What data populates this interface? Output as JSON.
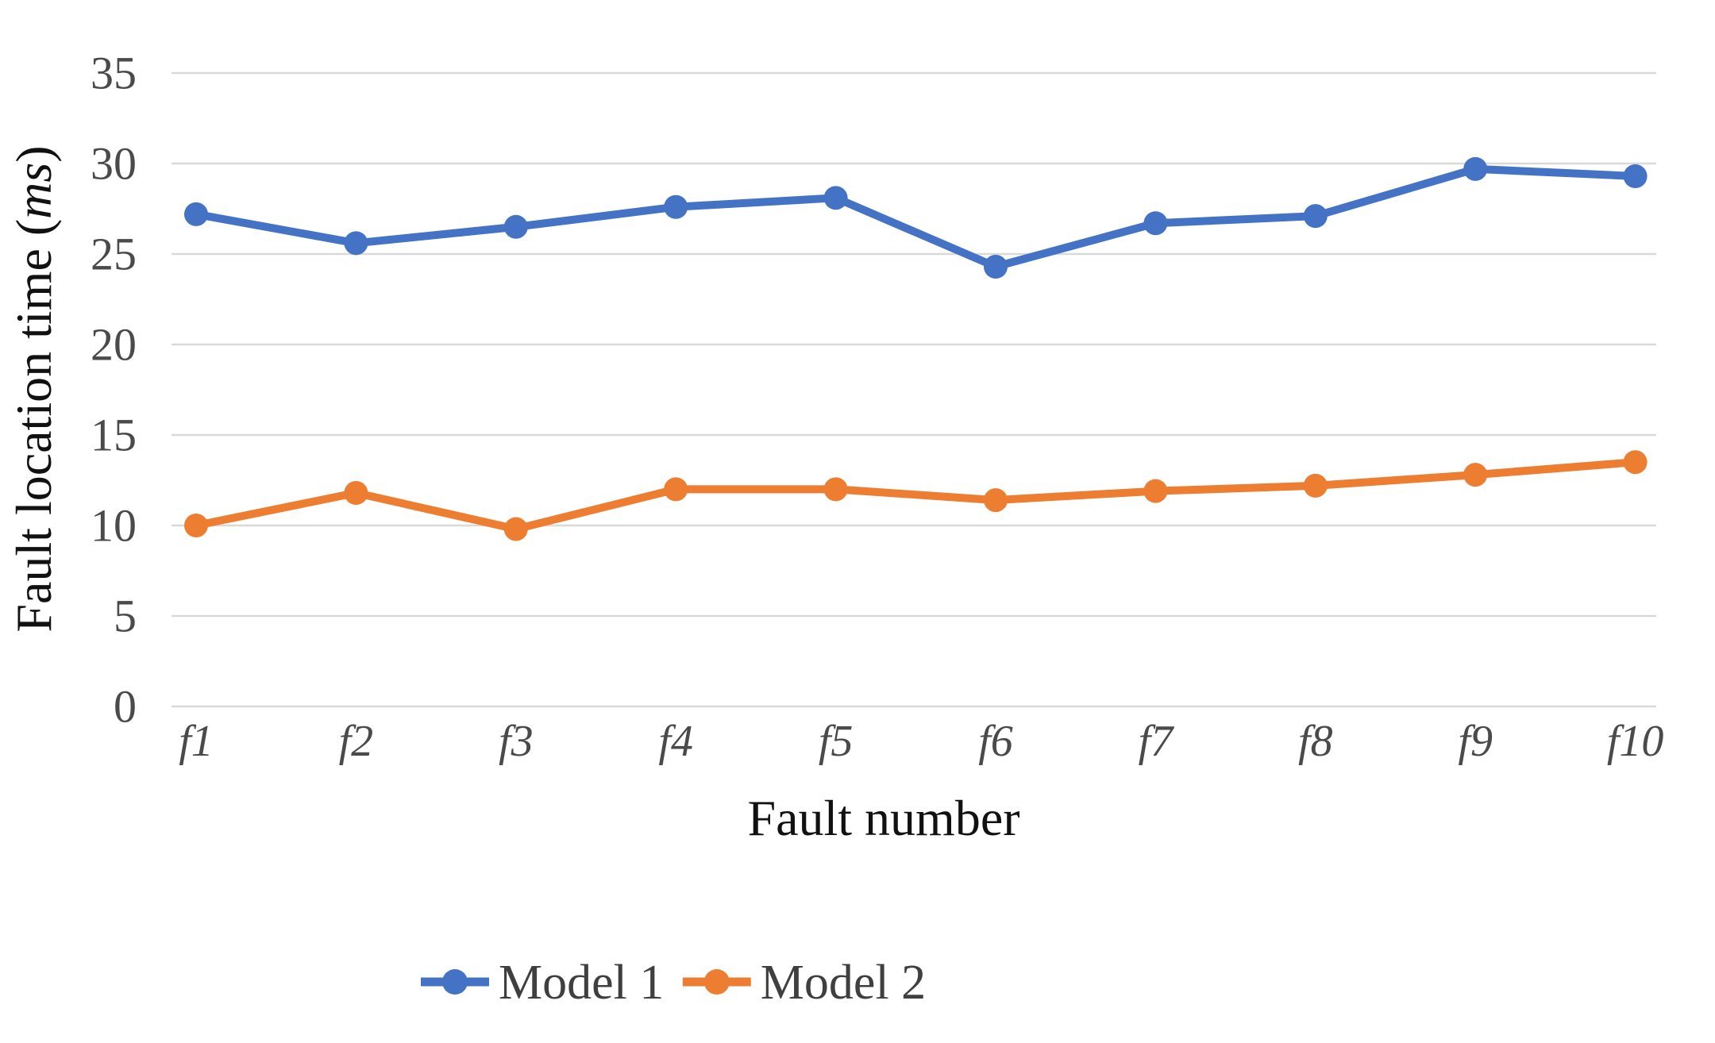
{
  "chart_data": {
    "type": "line",
    "title": "",
    "xlabel": "Fault number",
    "ylabel": "Fault location time (ms)",
    "ylabel_parts": {
      "prefix": "Fault location time (",
      "italic": "ms",
      "suffix": ")"
    },
    "categories": [
      "f1",
      "f2",
      "f3",
      "f4",
      "f5",
      "f6",
      "f7",
      "f8",
      "f9",
      "f10"
    ],
    "y_ticks": [
      0,
      5,
      10,
      15,
      20,
      25,
      30,
      35
    ],
    "ylim": [
      0,
      35
    ],
    "grid": "horizontal-only",
    "legend_position": "bottom-center",
    "series": [
      {
        "name": "Model 1",
        "color": "#4472C4",
        "marker": "circle",
        "values": [
          27.2,
          25.6,
          26.5,
          27.6,
          28.1,
          24.3,
          26.7,
          27.1,
          29.7,
          29.3
        ]
      },
      {
        "name": "Model 2",
        "color": "#ED7D31",
        "marker": "circle",
        "values": [
          10.0,
          11.8,
          9.8,
          12.0,
          12.0,
          11.4,
          11.9,
          12.2,
          12.8,
          13.5
        ]
      }
    ]
  },
  "colors": {
    "gridline": "#D9D9D9",
    "tick_label": "#4A4A4A",
    "axis_title": "#111111",
    "legend_text": "#3F3F3F",
    "background": "#FFFFFF"
  }
}
